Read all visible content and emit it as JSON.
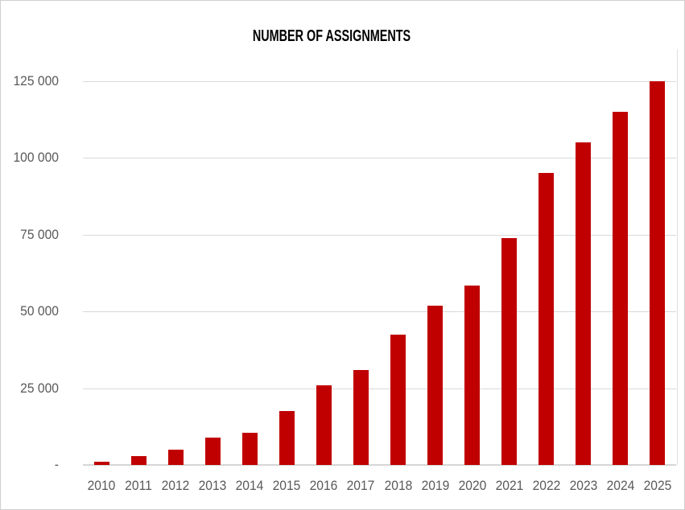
{
  "title": "NUMBER OF ASSIGNMENTS",
  "colors": {
    "bar": "#C00000",
    "gridline": "#D9D9D9",
    "axis_line": "#D6D6D6",
    "tick_label": "#595959",
    "title_text": "#000000",
    "frame_border": "#CFCFCF",
    "background": "#FFFFFF"
  },
  "y_axis": {
    "tick_labels": [
      "125 000",
      "100 000",
      "75 000",
      "50 000",
      "25 000",
      "-"
    ],
    "tick_values": [
      125000,
      100000,
      75000,
      50000,
      25000,
      0
    ]
  },
  "chart_data": {
    "type": "bar",
    "title": "NUMBER OF ASSIGNMENTS",
    "categories": [
      "2010",
      "2011",
      "2012",
      "2013",
      "2014",
      "2015",
      "2016",
      "2017",
      "2018",
      "2019",
      "2020",
      "2021",
      "2022",
      "2023",
      "2024",
      "2025"
    ],
    "values": [
      1000,
      3000,
      5000,
      9000,
      10500,
      17500,
      26000,
      31000,
      42500,
      52000,
      58500,
      74000,
      95000,
      105000,
      115000,
      125000
    ],
    "xlabel": "",
    "ylabel": "",
    "ylim": [
      0,
      125000
    ],
    "ytick_step": 25000,
    "grid": true,
    "legend": false,
    "bar_color": "#C00000"
  }
}
